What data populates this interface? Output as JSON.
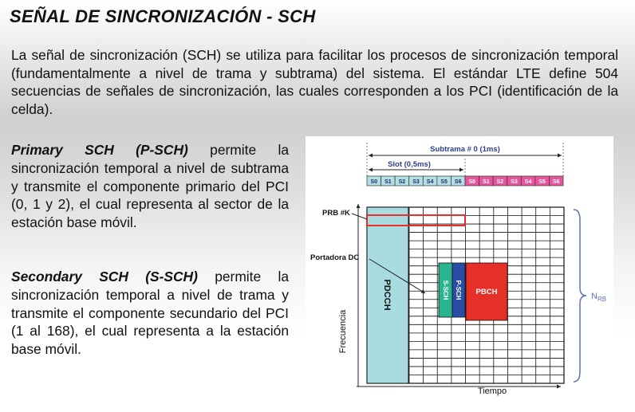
{
  "title": "SEÑAL DE SINCRONIZACIÓN - SCH",
  "intro": "La señal de sincronización (SCH) se utiliza para facilitar los procesos de sincronización temporal (fundamentalmente a nivel de trama y subtrama) del sistema. El estándar LTE define 504 secuencias de señales de sincronización, las cuales corresponden a los PCI (identificación de la celda).",
  "primary": {
    "lead": "Primary SCH (P-SCH)",
    "body": " permite la sincronización temporal a nivel de subtrama y transmite el componente primario del PCI (0, 1 y 2), el cual representa al sector de la estación base móvil."
  },
  "secondary": {
    "lead": "Secondary SCH (S-SCH)",
    "body": " permite la sincronización temporal a nivel de trama y transmite el componente secundario del PCI (1 al 168), el cual representa a la estación base móvil."
  },
  "diagram": {
    "subframe_label": "Subtrama # 0  (1ms)",
    "slot_label": "Slot (0,5ms)",
    "slots_first": [
      "S0",
      "S1",
      "S2",
      "S3",
      "S4",
      "S5",
      "S6"
    ],
    "slots_second": [
      "S0",
      "S1",
      "S2",
      "S3",
      "S4",
      "S5",
      "S6"
    ],
    "prb_label": "PRB #K",
    "carrier_label": "Portadora DC",
    "pdcch": "PDCCH",
    "sssch": "S-SCH",
    "pssch": "P-SCH",
    "pbch": "PBCH",
    "nrb_main": "N",
    "nrb_sub": "RB",
    "y_axis": "Frecuencia",
    "x_axis": "Tiempo",
    "colors": {
      "slot_first": "#b4dfe4",
      "slot_second": "#e9559c",
      "pdcch": "#a9dce1",
      "sssch": "#2ab48e",
      "pssch": "#2a4ea6",
      "pbch": "#e62f26",
      "prb_box": "#e62f26",
      "blue_text": "#2c3f8f",
      "brace": "#5f72b6"
    }
  }
}
